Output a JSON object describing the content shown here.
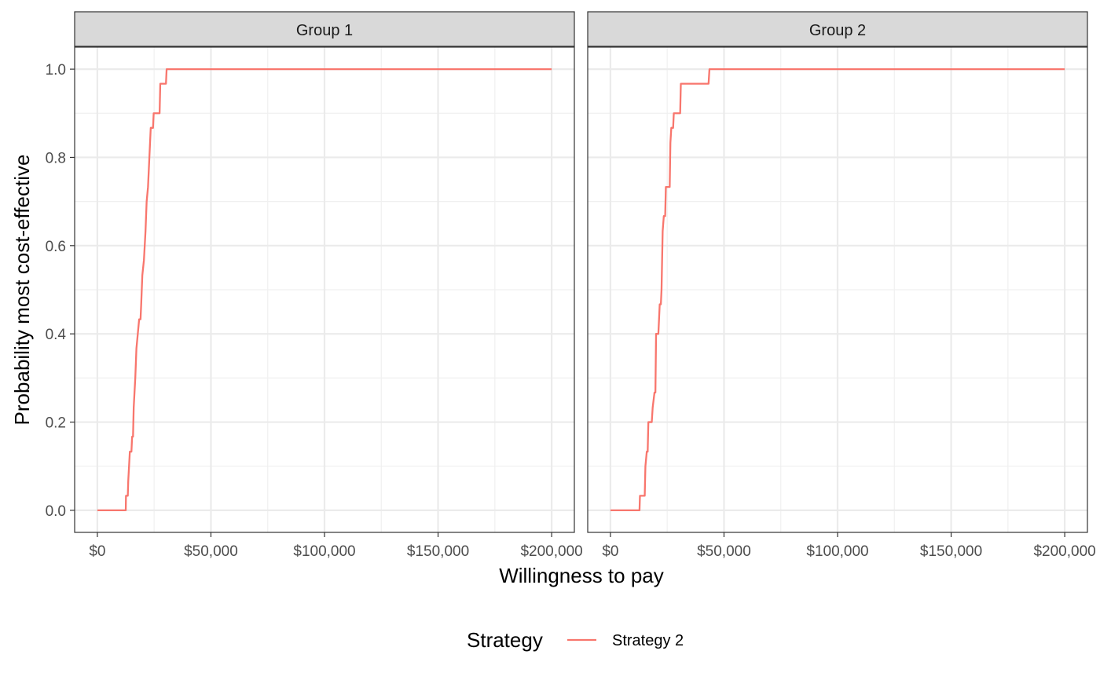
{
  "chart_data": {
    "type": "line",
    "xlabel": "Willingness to pay",
    "ylabel": "Probability most cost-effective",
    "xlim": [
      -10000,
      210000
    ],
    "ylim": [
      -0.05,
      1.05
    ],
    "x_ticks": [
      0,
      50000,
      100000,
      150000,
      200000
    ],
    "x_tick_labels": [
      "$0",
      "$50,000",
      "$100,000",
      "$150,000",
      "$200,000"
    ],
    "y_ticks": [
      0,
      0.2,
      0.4,
      0.6,
      0.8,
      1.0
    ],
    "y_tick_labels": [
      "0.0",
      "0.2",
      "0.4",
      "0.6",
      "0.8",
      "1.0"
    ],
    "grid": true,
    "legend": {
      "title": "Strategy",
      "position": "bottom",
      "entries": [
        {
          "label": "Strategy 2",
          "color": "#F8766D"
        }
      ]
    },
    "panels": [
      {
        "label": "Group 1",
        "series": [
          {
            "name": "Strategy 2",
            "color": "#F8766D",
            "points": [
              [
                0,
                0.0
              ],
              [
                12500,
                0.0
              ],
              [
                12600,
                0.033
              ],
              [
                13400,
                0.033
              ],
              [
                13600,
                0.067
              ],
              [
                14300,
                0.133
              ],
              [
                15000,
                0.133
              ],
              [
                15300,
                0.167
              ],
              [
                15700,
                0.167
              ],
              [
                16000,
                0.233
              ],
              [
                16700,
                0.3
              ],
              [
                17200,
                0.367
              ],
              [
                17800,
                0.4
              ],
              [
                18400,
                0.433
              ],
              [
                19000,
                0.433
              ],
              [
                19300,
                0.467
              ],
              [
                19800,
                0.533
              ],
              [
                20500,
                0.567
              ],
              [
                21200,
                0.633
              ],
              [
                21700,
                0.7
              ],
              [
                22300,
                0.733
              ],
              [
                22900,
                0.8
              ],
              [
                23500,
                0.867
              ],
              [
                24500,
                0.867
              ],
              [
                24800,
                0.9
              ],
              [
                27400,
                0.9
              ],
              [
                27700,
                0.967
              ],
              [
                30200,
                0.967
              ],
              [
                30500,
                1.0
              ],
              [
                200000,
                1.0
              ]
            ]
          }
        ]
      },
      {
        "label": "Group 2",
        "series": [
          {
            "name": "Strategy 2",
            "color": "#F8766D",
            "points": [
              [
                0,
                0.0
              ],
              [
                12800,
                0.0
              ],
              [
                13000,
                0.033
              ],
              [
                15100,
                0.033
              ],
              [
                15400,
                0.1
              ],
              [
                16000,
                0.133
              ],
              [
                16400,
                0.133
              ],
              [
                16700,
                0.2
              ],
              [
                18200,
                0.2
              ],
              [
                18600,
                0.233
              ],
              [
                19400,
                0.267
              ],
              [
                19800,
                0.267
              ],
              [
                20100,
                0.4
              ],
              [
                21100,
                0.4
              ],
              [
                21400,
                0.433
              ],
              [
                21700,
                0.467
              ],
              [
                22200,
                0.467
              ],
              [
                22500,
                0.5
              ],
              [
                23000,
                0.633
              ],
              [
                23500,
                0.667
              ],
              [
                24100,
                0.667
              ],
              [
                24400,
                0.733
              ],
              [
                26100,
                0.733
              ],
              [
                26400,
                0.833
              ],
              [
                26800,
                0.867
              ],
              [
                27600,
                0.867
              ],
              [
                27900,
                0.9
              ],
              [
                30700,
                0.9
              ],
              [
                31000,
                0.967
              ],
              [
                43200,
                0.967
              ],
              [
                43600,
                1.0
              ],
              [
                200000,
                1.0
              ]
            ]
          }
        ]
      }
    ]
  }
}
